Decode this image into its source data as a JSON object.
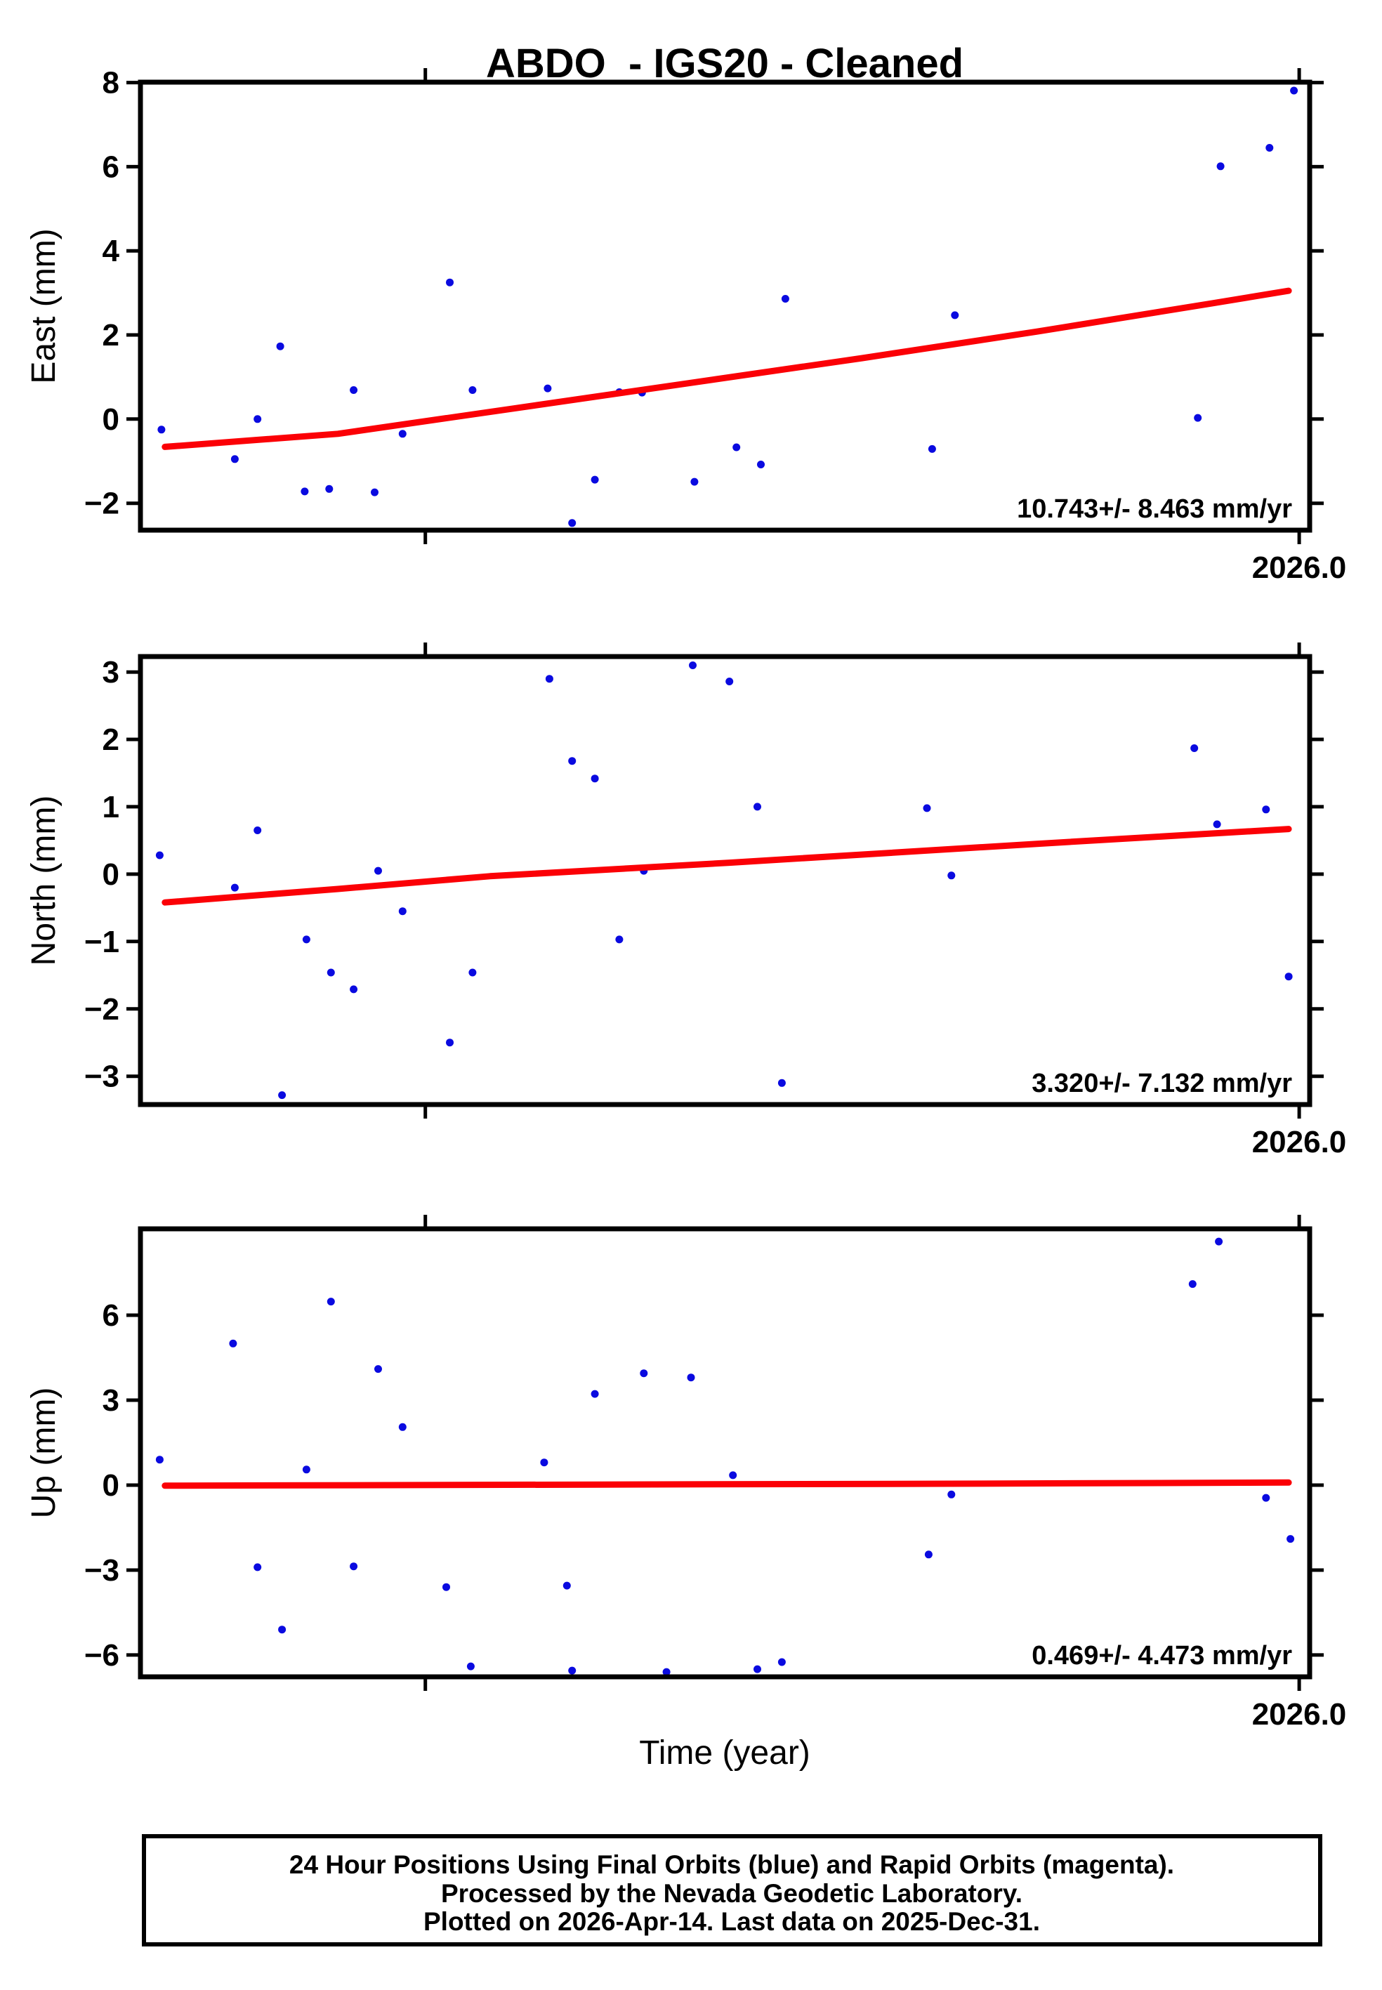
{
  "title": "ABDO  - IGS20 - Cleaned",
  "xlabel": "Time (year)",
  "colors": {
    "points_blue": "#0a0ae0",
    "trend_red": "#fb0006",
    "frame_black": "#000000",
    "background": "#ffffff"
  },
  "caption": {
    "line1": "24 Hour Positions Using Final Orbits (blue) and Rapid Orbits (magenta).",
    "line2": "Processed by the Nevada Geodetic Laboratory.",
    "line3": "Plotted on 2026-Apr-14. Last data on 2025-Dec-31."
  },
  "chart_data": [
    {
      "type": "scatter",
      "name": "east",
      "ylabel": "East (mm)",
      "annotation": "10.743+/- 8.463 mm/yr",
      "x_tick_label": "2026.0",
      "xlim": [
        2025.337,
        2026.006
      ],
      "ylim": [
        -2.64,
        8.01
      ],
      "xticks": [
        2025.5,
        2026.0
      ],
      "yticks": [
        8,
        6,
        4,
        2,
        0,
        -2
      ],
      "ytick_labels": [
        "8",
        "6",
        "4",
        "2",
        "0",
        "−2"
      ],
      "legend_position": "none",
      "grid": false,
      "points": [
        [
          2025.349,
          -0.25
        ],
        [
          2025.391,
          -0.95
        ],
        [
          2025.404,
          0.0
        ],
        [
          2025.417,
          1.73
        ],
        [
          2025.431,
          -1.72
        ],
        [
          2025.445,
          -1.66
        ],
        [
          2025.459,
          0.69
        ],
        [
          2025.471,
          -1.74
        ],
        [
          2025.487,
          -0.35
        ],
        [
          2025.514,
          3.25
        ],
        [
          2025.527,
          0.69
        ],
        [
          2025.57,
          0.73
        ],
        [
          2025.584,
          -2.47
        ],
        [
          2025.597,
          -1.44
        ],
        [
          2025.611,
          0.64
        ],
        [
          2025.624,
          0.63
        ],
        [
          2025.654,
          -1.49
        ],
        [
          2025.678,
          -0.67
        ],
        [
          2025.692,
          -1.08
        ],
        [
          2025.706,
          2.86
        ],
        [
          2025.79,
          -0.71
        ],
        [
          2025.803,
          2.47
        ],
        [
          2025.942,
          0.03
        ],
        [
          2025.955,
          6.01
        ],
        [
          2025.983,
          6.45
        ],
        [
          2025.997,
          7.81
        ]
      ],
      "trend": [
        [
          2025.351,
          -0.66
        ],
        [
          2025.45,
          -0.35
        ],
        [
          2025.55,
          0.25
        ],
        [
          2025.65,
          0.85
        ],
        [
          2025.75,
          1.45
        ],
        [
          2025.85,
          2.08
        ],
        [
          2025.95,
          2.75
        ],
        [
          2025.994,
          3.05
        ]
      ]
    },
    {
      "type": "scatter",
      "name": "north",
      "ylabel": "North (mm)",
      "annotation": "3.320+/- 7.132 mm/yr",
      "x_tick_label": "2026.0",
      "xlim": [
        2025.337,
        2026.006
      ],
      "ylim": [
        -3.42,
        3.23
      ],
      "xticks": [
        2025.5,
        2026.0
      ],
      "yticks": [
        3,
        2,
        1,
        0,
        -1,
        -2,
        -3
      ],
      "ytick_labels": [
        "3",
        "2",
        "1",
        "0",
        "−1",
        "−2",
        "−3"
      ],
      "legend_position": "none",
      "grid": false,
      "points": [
        [
          2025.348,
          0.28
        ],
        [
          2025.391,
          -0.2
        ],
        [
          2025.404,
          0.65
        ],
        [
          2025.418,
          -3.28
        ],
        [
          2025.432,
          -0.97
        ],
        [
          2025.446,
          -1.46
        ],
        [
          2025.459,
          -1.71
        ],
        [
          2025.473,
          0.05
        ],
        [
          2025.487,
          -0.55
        ],
        [
          2025.514,
          -2.5
        ],
        [
          2025.527,
          -1.46
        ],
        [
          2025.571,
          2.9
        ],
        [
          2025.584,
          1.68
        ],
        [
          2025.597,
          1.42
        ],
        [
          2025.611,
          -0.97
        ],
        [
          2025.625,
          0.05
        ],
        [
          2025.653,
          3.1
        ],
        [
          2025.674,
          2.86
        ],
        [
          2025.69,
          1.0
        ],
        [
          2025.704,
          -3.1
        ],
        [
          2025.787,
          0.98
        ],
        [
          2025.801,
          -0.02
        ],
        [
          2025.94,
          1.87
        ],
        [
          2025.953,
          0.74
        ],
        [
          2025.981,
          0.96
        ],
        [
          2025.994,
          -1.52
        ]
      ],
      "trend": [
        [
          2025.351,
          -0.42
        ],
        [
          2025.45,
          -0.22
        ],
        [
          2025.537,
          -0.03
        ],
        [
          2025.674,
          0.17
        ],
        [
          2025.85,
          0.45
        ],
        [
          2025.994,
          0.67
        ]
      ]
    },
    {
      "type": "scatter",
      "name": "up",
      "ylabel": "Up (mm)",
      "annotation": "0.469+/- 4.473 mm/yr",
      "x_tick_label": "2026.0",
      "xlim": [
        2025.337,
        2026.006
      ],
      "ylim": [
        -6.77,
        9.05
      ],
      "xticks": [
        2025.5,
        2026.0
      ],
      "yticks": [
        6,
        3,
        0,
        -3,
        -6
      ],
      "ytick_labels": [
        "6",
        "3",
        "0",
        "−3",
        "−6"
      ],
      "legend_position": "none",
      "grid": false,
      "points": [
        [
          2025.348,
          0.9
        ],
        [
          2025.39,
          5.0
        ],
        [
          2025.404,
          -2.9
        ],
        [
          2025.418,
          -5.1
        ],
        [
          2025.432,
          0.55
        ],
        [
          2025.446,
          6.48
        ],
        [
          2025.459,
          -2.87
        ],
        [
          2025.473,
          4.1
        ],
        [
          2025.487,
          2.05
        ],
        [
          2025.512,
          -3.6
        ],
        [
          2025.526,
          -6.4
        ],
        [
          2025.568,
          0.8
        ],
        [
          2025.581,
          -3.55
        ],
        [
          2025.584,
          -6.55
        ],
        [
          2025.597,
          3.22
        ],
        [
          2025.625,
          3.95
        ],
        [
          2025.638,
          -6.6
        ],
        [
          2025.652,
          3.8
        ],
        [
          2025.676,
          0.35
        ],
        [
          2025.69,
          -6.5
        ],
        [
          2025.704,
          -6.25
        ],
        [
          2025.788,
          -2.45
        ],
        [
          2025.801,
          -0.33
        ],
        [
          2025.939,
          7.1
        ],
        [
          2025.954,
          8.6
        ],
        [
          2025.981,
          -0.45
        ],
        [
          2025.995,
          -1.9
        ]
      ],
      "trend": [
        [
          2025.351,
          -0.02
        ],
        [
          2025.6,
          0.02
        ],
        [
          2025.8,
          0.05
        ],
        [
          2025.994,
          0.09
        ]
      ]
    }
  ]
}
